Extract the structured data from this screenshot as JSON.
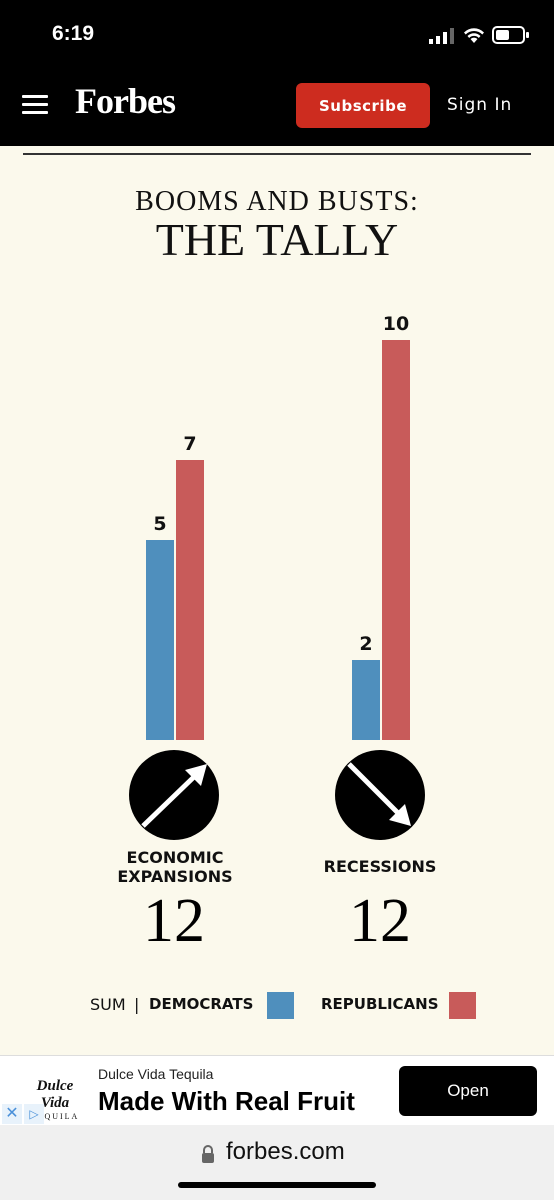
{
  "status_bar": {
    "time": "6:19"
  },
  "header": {
    "logo": "Forbes",
    "subscribe_label": "Subscribe",
    "sign_in_label": "Sign In",
    "subscribe_color": "#cd2c1f"
  },
  "chart_data": {
    "type": "bar",
    "title": "BOOMS AND BUSTS:",
    "subtitle": "THE TALLY",
    "categories": [
      "ECONOMIC EXPANSIONS",
      "RECESSIONS"
    ],
    "category_icons": [
      "arrow-up-right-icon",
      "arrow-down-right-icon"
    ],
    "category_totals": [
      "12",
      "12"
    ],
    "series": [
      {
        "name": "DEMOCRATS",
        "color": "#4f8fbd",
        "values": [
          5,
          2
        ]
      },
      {
        "name": "REPUBLICANS",
        "color": "#c85b5a",
        "values": [
          7,
          10
        ]
      }
    ],
    "legend_prefix": "SUM",
    "legend_separator": "|",
    "legend_position": "bottom",
    "ylim": [
      0,
      10
    ],
    "grid": false
  },
  "ad": {
    "logo_text": "Dulce Vida",
    "logo_subtext": "TEQUILA",
    "advertiser": "Dulce Vida Tequila",
    "headline": "Made With Real Fruit",
    "button_label": "Open",
    "close_icon": "close-icon",
    "choices_icon": "ad-choices-icon"
  },
  "url_bar": {
    "url": "forbes.com",
    "icon": "lock-icon"
  }
}
